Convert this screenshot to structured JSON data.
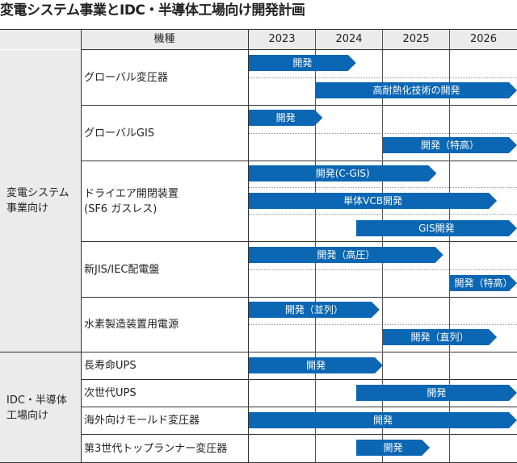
{
  "title": "変電システム事業とIDC・半導体工場向け開発計画",
  "header": {
    "item": "機種",
    "years": [
      "2023",
      "2024",
      "2025",
      "2026"
    ]
  },
  "categories": [
    {
      "label": "変電システム\n事業向け"
    },
    {
      "label": "IDC・半導体\n工場向け"
    }
  ],
  "products": [
    {
      "name": "グローバル変圧器",
      "bars": [
        {
          "label": "開発",
          "start": 2023.0,
          "end": 2024.6
        },
        {
          "label": "高耐熱化技術の開発",
          "start": 2024.0,
          "end": 2027.0
        }
      ]
    },
    {
      "name": "グローバルGIS",
      "bars": [
        {
          "label": "開発",
          "start": 2023.0,
          "end": 2024.1
        },
        {
          "label": "開発（特高）",
          "start": 2025.0,
          "end": 2027.0
        }
      ]
    },
    {
      "name": "ドライエア開閉装置\n(SF6 ガスレス)",
      "bars": [
        {
          "label": "開発(C-GIS)",
          "start": 2023.0,
          "end": 2025.8
        },
        {
          "label": "単体VCB開発",
          "start": 2023.0,
          "end": 2026.7
        },
        {
          "label": "GIS開発",
          "start": 2024.6,
          "end": 2027.0
        }
      ]
    },
    {
      "name": "新JIS/IEC配電盤",
      "bars": [
        {
          "label": "開発（高圧）",
          "start": 2023.0,
          "end": 2025.9
        },
        {
          "label": "開発（特高）",
          "start": 2026.0,
          "end": 2027.0
        }
      ]
    },
    {
      "name": "水素製造装置用電源",
      "bars": [
        {
          "label": "開発（並列）",
          "start": 2023.0,
          "end": 2024.95
        },
        {
          "label": "開発（直列）",
          "start": 2025.0,
          "end": 2026.7
        }
      ]
    },
    {
      "name": "長寿命UPS",
      "bars": [
        {
          "label": "開発",
          "start": 2023.0,
          "end": 2025.0
        }
      ]
    },
    {
      "name": "次世代UPS",
      "bars": [
        {
          "label": "開発",
          "start": 2024.6,
          "end": 2027.0
        }
      ]
    },
    {
      "name": "海外向けモールド変圧器",
      "bars": [
        {
          "label": "開発",
          "start": 2023.0,
          "end": 2027.0
        }
      ]
    },
    {
      "name": "第3世代トップランナー変圧器",
      "bars": [
        {
          "label": "開発",
          "start": 2024.6,
          "end": 2025.7
        }
      ]
    }
  ]
}
